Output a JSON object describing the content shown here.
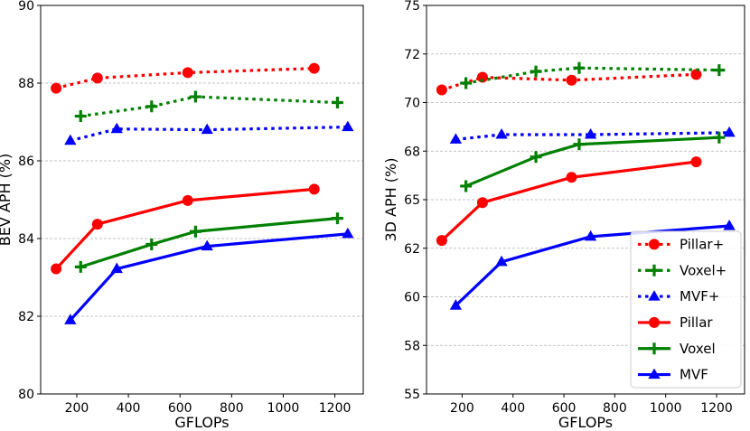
{
  "chart_data": [
    {
      "type": "line",
      "xlabel": "GFLOPs",
      "ylabel": "BEV APH (%)",
      "xlim": [
        60,
        1310
      ],
      "ylim": [
        80,
        90
      ],
      "xticks": [
        200,
        400,
        600,
        800,
        1000,
        1200
      ],
      "yticks": [
        80,
        82,
        84,
        86,
        88,
        90
      ],
      "grid": "horizontal-dashed",
      "legend": "none",
      "series": [
        {
          "name": "Pillar+",
          "color": "#ff0000",
          "style": "dotted",
          "marker": "circle",
          "x": [
            120,
            280,
            630,
            1120
          ],
          "y": [
            87.87,
            88.13,
            88.27,
            88.38
          ]
        },
        {
          "name": "Voxel+",
          "color": "#008000",
          "style": "dotted",
          "marker": "plus",
          "x": [
            215,
            490,
            660,
            1210
          ],
          "y": [
            87.15,
            87.4,
            87.65,
            87.5
          ]
        },
        {
          "name": "MVF+",
          "color": "#0000ff",
          "style": "dotted",
          "marker": "triangle",
          "x": [
            175,
            355,
            705,
            1250
          ],
          "y": [
            86.52,
            86.82,
            86.8,
            86.87
          ]
        },
        {
          "name": "Pillar",
          "color": "#ff0000",
          "style": "solid",
          "marker": "circle",
          "x": [
            120,
            280,
            630,
            1120
          ],
          "y": [
            83.22,
            84.37,
            84.98,
            85.27
          ]
        },
        {
          "name": "Voxel",
          "color": "#008000",
          "style": "solid",
          "marker": "plus",
          "x": [
            215,
            490,
            660,
            1210
          ],
          "y": [
            83.27,
            83.85,
            84.18,
            84.52
          ]
        },
        {
          "name": "MVF",
          "color": "#0000ff",
          "style": "solid",
          "marker": "triangle",
          "x": [
            175,
            355,
            705,
            1250
          ],
          "y": [
            81.9,
            83.22,
            83.8,
            84.12
          ]
        }
      ]
    },
    {
      "type": "line",
      "xlabel": "GFLOPs",
      "ylabel": "3D APH (%)",
      "xlim": [
        60,
        1310
      ],
      "ylim": [
        55,
        75
      ],
      "xticks": [
        200,
        400,
        600,
        800,
        1000,
        1200
      ],
      "yticks": [
        55,
        57.5,
        60,
        62.5,
        65,
        67.5,
        70,
        72.5,
        75
      ],
      "ytick_labels": [
        "55",
        "58",
        "60",
        "62",
        "65",
        "68",
        "70",
        "72",
        "75"
      ],
      "grid": "horizontal-dashed",
      "legend": "bottom-right",
      "series": [
        {
          "name": "Pillar+",
          "color": "#ff0000",
          "style": "dotted",
          "marker": "circle",
          "x": [
            120,
            280,
            630,
            1120
          ],
          "y": [
            70.65,
            71.3,
            71.15,
            71.45
          ]
        },
        {
          "name": "Voxel+",
          "color": "#008000",
          "style": "dotted",
          "marker": "plus",
          "x": [
            215,
            490,
            660,
            1210
          ],
          "y": [
            71.0,
            71.6,
            71.78,
            71.67
          ]
        },
        {
          "name": "MVF+",
          "color": "#0000ff",
          "style": "dotted",
          "marker": "triangle",
          "x": [
            175,
            355,
            705,
            1250
          ],
          "y": [
            68.1,
            68.35,
            68.35,
            68.45
          ]
        },
        {
          "name": "Pillar",
          "color": "#ff0000",
          "style": "solid",
          "marker": "circle",
          "x": [
            120,
            280,
            630,
            1120
          ],
          "y": [
            62.9,
            64.85,
            66.15,
            66.95
          ]
        },
        {
          "name": "Voxel",
          "color": "#008000",
          "style": "solid",
          "marker": "plus",
          "x": [
            215,
            490,
            660,
            1210
          ],
          "y": [
            65.7,
            67.2,
            67.85,
            68.2
          ]
        },
        {
          "name": "MVF",
          "color": "#0000ff",
          "style": "solid",
          "marker": "triangle",
          "x": [
            175,
            355,
            705,
            1250
          ],
          "y": [
            59.55,
            61.8,
            63.1,
            63.65
          ]
        }
      ]
    }
  ]
}
